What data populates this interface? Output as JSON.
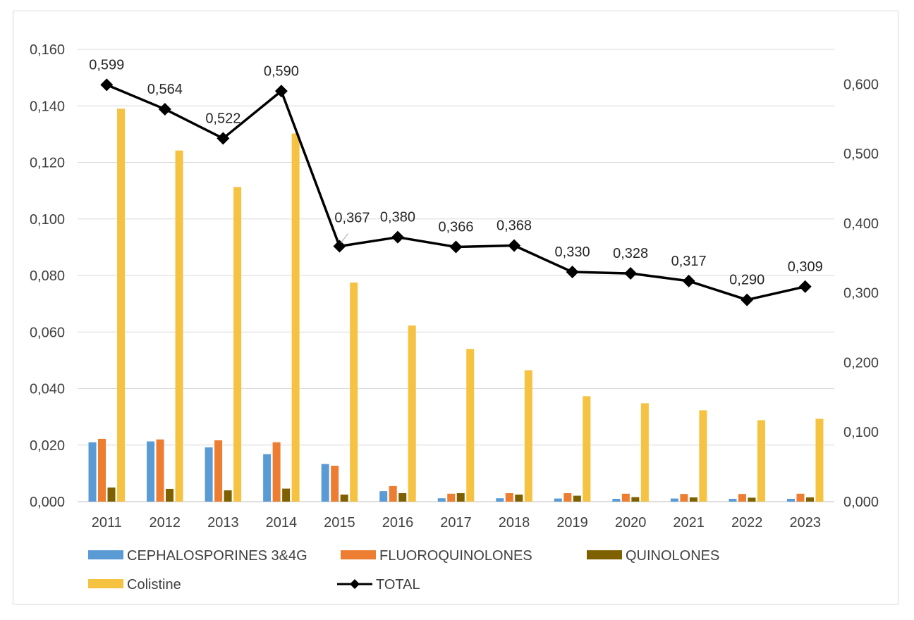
{
  "chart_data": {
    "type": "bar",
    "categories": [
      "2011",
      "2012",
      "2013",
      "2014",
      "2015",
      "2016",
      "2017",
      "2018",
      "2019",
      "2020",
      "2021",
      "2022",
      "2023"
    ],
    "series": [
      {
        "name": "CEPHALOSPORINES 3&4G",
        "type": "bar",
        "axis": "left",
        "color": "#5b9bd5",
        "values": [
          0.021,
          0.0213,
          0.0192,
          0.0168,
          0.0133,
          0.0037,
          0.0012,
          0.0012,
          0.0011,
          0.001,
          0.0011,
          0.001,
          0.001
        ]
      },
      {
        "name": "FLUOROQUINOLONES",
        "type": "bar",
        "axis": "left",
        "color": "#ed7d31",
        "values": [
          0.0222,
          0.022,
          0.0217,
          0.021,
          0.0127,
          0.0055,
          0.0028,
          0.003,
          0.003,
          0.0028,
          0.0027,
          0.0027,
          0.0028
        ]
      },
      {
        "name": "QUINOLONES",
        "type": "bar",
        "axis": "left",
        "color": "#7f6000",
        "values": [
          0.005,
          0.0045,
          0.004,
          0.0046,
          0.0025,
          0.003,
          0.003,
          0.0025,
          0.0021,
          0.0016,
          0.0015,
          0.0014,
          0.0015
        ]
      },
      {
        "name": "Colistine",
        "type": "bar",
        "axis": "left",
        "color": "#f5c242",
        "values": [
          0.139,
          0.1242,
          0.1113,
          0.1302,
          0.0775,
          0.0623,
          0.054,
          0.0465,
          0.0373,
          0.0348,
          0.0323,
          0.0288,
          0.0293
        ]
      },
      {
        "name": "TOTAL",
        "type": "line",
        "axis": "right",
        "color": "#000000",
        "values": [
          0.599,
          0.564,
          0.522,
          0.59,
          0.367,
          0.38,
          0.366,
          0.368,
          0.33,
          0.328,
          0.317,
          0.29,
          0.309
        ],
        "labels": [
          "0,599",
          "0,564",
          "0,522",
          "0,590",
          "0,367",
          "0,380",
          "0,366",
          "0,368",
          "0,330",
          "0,328",
          "0,317",
          "0,290",
          "0,309"
        ]
      }
    ],
    "y_left": {
      "range": [
        0,
        0.16
      ],
      "ticks": [
        "0,000",
        "0,020",
        "0,040",
        "0,060",
        "0,080",
        "0,100",
        "0,120",
        "0,140",
        "0,160"
      ]
    },
    "y_right": {
      "range": [
        0,
        0.65
      ],
      "ticks": [
        "0,000",
        "0,100",
        "0,200",
        "0,300",
        "0,400",
        "0,500",
        "0,600"
      ]
    },
    "grid": true,
    "legend": "bottom",
    "title": "",
    "xlabel": "",
    "ylabel": ""
  }
}
